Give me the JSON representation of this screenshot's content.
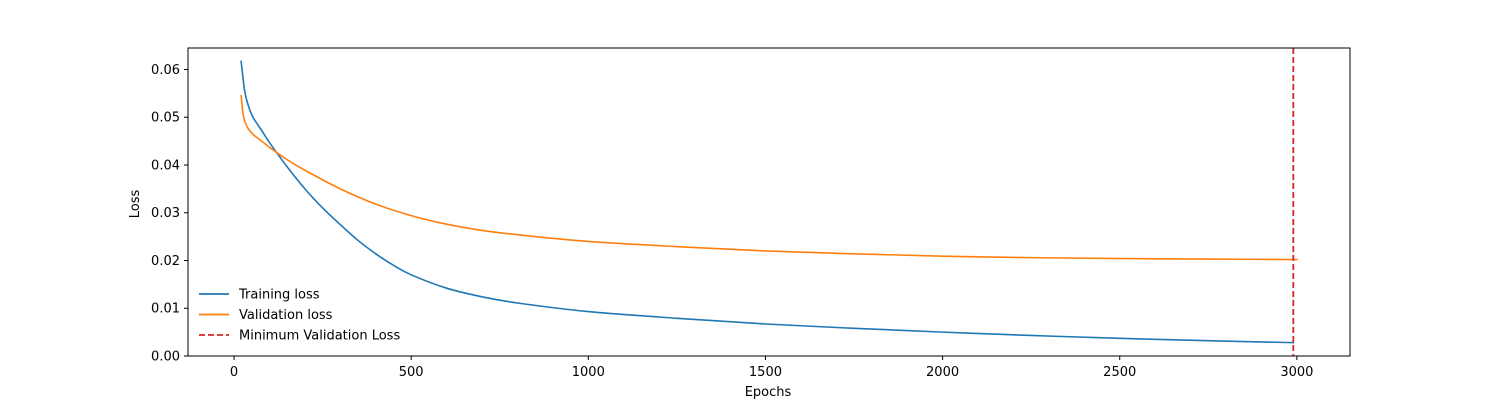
{
  "chart_data": {
    "type": "line",
    "title": "",
    "xlabel": "Epochs",
    "ylabel": "Loss",
    "xlim": [
      -130,
      3150
    ],
    "ylim": [
      0.0,
      0.0645
    ],
    "xticks": [
      0,
      500,
      1000,
      1500,
      2000,
      2500,
      3000
    ],
    "xtick_labels": [
      "0",
      "500",
      "1000",
      "1500",
      "2000",
      "2500",
      "3000"
    ],
    "yticks": [
      0.0,
      0.01,
      0.02,
      0.03,
      0.04,
      0.05,
      0.06
    ],
    "ytick_labels": [
      "0.00",
      "0.01",
      "0.02",
      "0.03",
      "0.04",
      "0.05",
      "0.06"
    ],
    "grid": false,
    "legend_position": "lower-left",
    "series": [
      {
        "name": "Training loss",
        "color": "#1f77b4",
        "style": "solid",
        "x": [
          20,
          30,
          40,
          50,
          60,
          80,
          100,
          150,
          200,
          250,
          300,
          350,
          400,
          450,
          500,
          600,
          700,
          800,
          1000,
          1250,
          1500,
          1750,
          2000,
          2250,
          2500,
          2750,
          2990
        ],
        "y": [
          0.0617,
          0.0555,
          0.0525,
          0.0505,
          0.0492,
          0.047,
          0.0447,
          0.0396,
          0.035,
          0.031,
          0.0275,
          0.0242,
          0.0214,
          0.019,
          0.017,
          0.0142,
          0.0124,
          0.0111,
          0.0093,
          0.0079,
          0.0067,
          0.0058,
          0.005,
          0.0043,
          0.0037,
          0.0032,
          0.0028
        ]
      },
      {
        "name": "Validation loss",
        "color": "#ff7f0e",
        "style": "solid",
        "x": [
          20,
          25,
          30,
          40,
          50,
          60,
          80,
          100,
          150,
          200,
          300,
          400,
          500,
          600,
          700,
          800,
          1000,
          1250,
          1500,
          1750,
          2000,
          2250,
          2500,
          2750,
          3000
        ],
        "y": [
          0.0545,
          0.051,
          0.0492,
          0.0476,
          0.0467,
          0.046,
          0.0449,
          0.0437,
          0.0411,
          0.0389,
          0.035,
          0.0318,
          0.0294,
          0.0276,
          0.0263,
          0.0254,
          0.024,
          0.0229,
          0.022,
          0.0214,
          0.0209,
          0.0206,
          0.0204,
          0.0203,
          0.0202
        ]
      }
    ],
    "vlines": [
      {
        "name": "Minimum Validation Loss",
        "x": 2990,
        "color": "#d62728",
        "style": "dashed"
      }
    ]
  }
}
